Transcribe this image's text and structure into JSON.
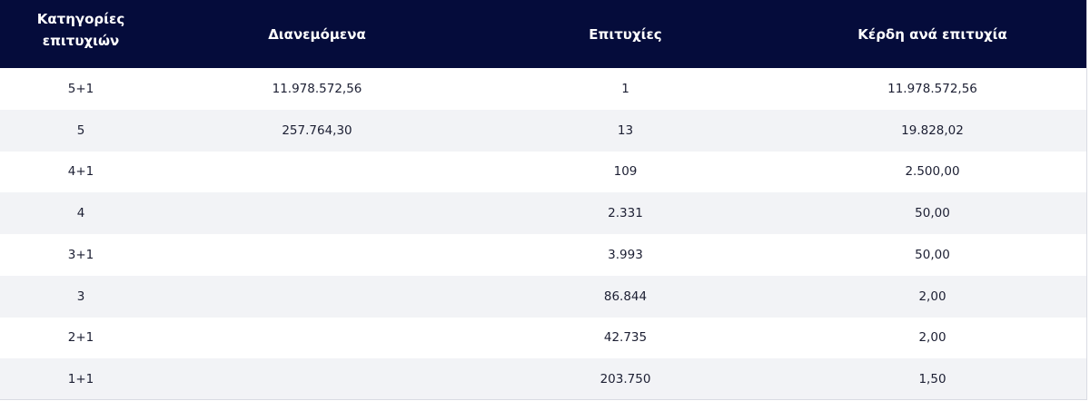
{
  "table": {
    "headers": {
      "category_line1": "Κατηγορίες",
      "category_line2": "επιτυχιών",
      "distributed": "Διανεμόμενα",
      "winners": "Επιτυχίες",
      "prize_per_winner": "Κέρδη ανά επιτυχία"
    },
    "rows": [
      {
        "category": "5+1",
        "distributed": "11.978.572,56",
        "winners": "1",
        "prize": "11.978.572,56"
      },
      {
        "category": "5",
        "distributed": "257.764,30",
        "winners": "13",
        "prize": "19.828,02"
      },
      {
        "category": "4+1",
        "distributed": "",
        "winners": "109",
        "prize": "2.500,00"
      },
      {
        "category": "4",
        "distributed": "",
        "winners": "2.331",
        "prize": "50,00"
      },
      {
        "category": "3+1",
        "distributed": "",
        "winners": "3.993",
        "prize": "50,00"
      },
      {
        "category": "3",
        "distributed": "",
        "winners": "86.844",
        "prize": "2,00"
      },
      {
        "category": "2+1",
        "distributed": "",
        "winners": "42.735",
        "prize": "2,00"
      },
      {
        "category": "1+1",
        "distributed": "",
        "winners": "203.750",
        "prize": "1,50"
      }
    ]
  },
  "colors": {
    "header_bg": "#050c3b",
    "header_text": "#ffffff",
    "row_alt_bg": "#f2f3f6",
    "cell_text": "#1c1f33"
  }
}
